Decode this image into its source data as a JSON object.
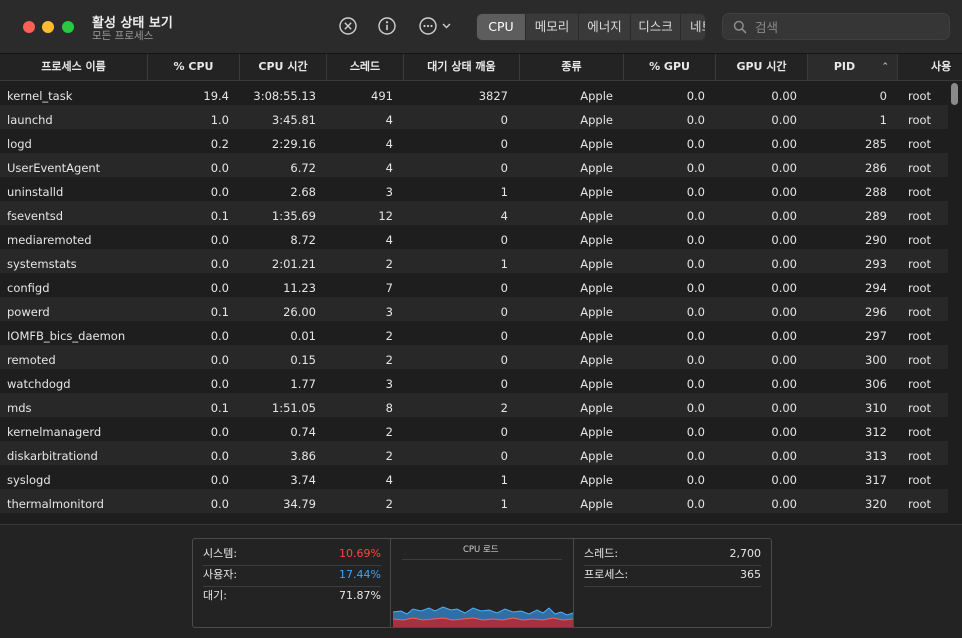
{
  "window": {
    "title": "활성 상태 보기",
    "subtitle": "모든 프로세스"
  },
  "toolbar": {
    "icons": [
      "stop-process-icon",
      "info-icon",
      "more-options-icon"
    ],
    "tabs": [
      "CPU",
      "메모리",
      "에너지",
      "디스크",
      "네트워크"
    ],
    "active_tab": "CPU",
    "search_placeholder": "검색"
  },
  "table": {
    "columns": [
      "프로세스 이름",
      "% CPU",
      "CPU 시간",
      "스레드",
      "대기 상태 깨움",
      "종류",
      "% GPU",
      "GPU 시간",
      "PID",
      "사용"
    ],
    "sorted_by": "PID",
    "sort_direction": "ascending",
    "rows": [
      {
        "name": "kernel_task",
        "cpu": "19.4",
        "time": "3:08:55.13",
        "threads": "491",
        "wakeups": "3827",
        "kind": "Apple",
        "gpu": "0.0",
        "gpu_time": "0.00",
        "pid": "0",
        "user": "root"
      },
      {
        "name": "launchd",
        "cpu": "1.0",
        "time": "3:45.81",
        "threads": "4",
        "wakeups": "0",
        "kind": "Apple",
        "gpu": "0.0",
        "gpu_time": "0.00",
        "pid": "1",
        "user": "root"
      },
      {
        "name": "logd",
        "cpu": "0.2",
        "time": "2:29.16",
        "threads": "4",
        "wakeups": "0",
        "kind": "Apple",
        "gpu": "0.0",
        "gpu_time": "0.00",
        "pid": "285",
        "user": "root"
      },
      {
        "name": "UserEventAgent",
        "cpu": "0.0",
        "time": "6.72",
        "threads": "4",
        "wakeups": "0",
        "kind": "Apple",
        "gpu": "0.0",
        "gpu_time": "0.00",
        "pid": "286",
        "user": "root"
      },
      {
        "name": "uninstalld",
        "cpu": "0.0",
        "time": "2.68",
        "threads": "3",
        "wakeups": "1",
        "kind": "Apple",
        "gpu": "0.0",
        "gpu_time": "0.00",
        "pid": "288",
        "user": "root"
      },
      {
        "name": "fseventsd",
        "cpu": "0.1",
        "time": "1:35.69",
        "threads": "12",
        "wakeups": "4",
        "kind": "Apple",
        "gpu": "0.0",
        "gpu_time": "0.00",
        "pid": "289",
        "user": "root"
      },
      {
        "name": "mediaremoted",
        "cpu": "0.0",
        "time": "8.72",
        "threads": "4",
        "wakeups": "0",
        "kind": "Apple",
        "gpu": "0.0",
        "gpu_time": "0.00",
        "pid": "290",
        "user": "root"
      },
      {
        "name": "systemstats",
        "cpu": "0.0",
        "time": "2:01.21",
        "threads": "2",
        "wakeups": "1",
        "kind": "Apple",
        "gpu": "0.0",
        "gpu_time": "0.00",
        "pid": "293",
        "user": "root"
      },
      {
        "name": "configd",
        "cpu": "0.0",
        "time": "11.23",
        "threads": "7",
        "wakeups": "0",
        "kind": "Apple",
        "gpu": "0.0",
        "gpu_time": "0.00",
        "pid": "294",
        "user": "root"
      },
      {
        "name": "powerd",
        "cpu": "0.1",
        "time": "26.00",
        "threads": "3",
        "wakeups": "0",
        "kind": "Apple",
        "gpu": "0.0",
        "gpu_time": "0.00",
        "pid": "296",
        "user": "root"
      },
      {
        "name": "IOMFB_bics_daemon",
        "cpu": "0.0",
        "time": "0.01",
        "threads": "2",
        "wakeups": "0",
        "kind": "Apple",
        "gpu": "0.0",
        "gpu_time": "0.00",
        "pid": "297",
        "user": "root"
      },
      {
        "name": "remoted",
        "cpu": "0.0",
        "time": "0.15",
        "threads": "2",
        "wakeups": "0",
        "kind": "Apple",
        "gpu": "0.0",
        "gpu_time": "0.00",
        "pid": "300",
        "user": "root"
      },
      {
        "name": "watchdogd",
        "cpu": "0.0",
        "time": "1.77",
        "threads": "3",
        "wakeups": "0",
        "kind": "Apple",
        "gpu": "0.0",
        "gpu_time": "0.00",
        "pid": "306",
        "user": "root"
      },
      {
        "name": "mds",
        "cpu": "0.1",
        "time": "1:51.05",
        "threads": "8",
        "wakeups": "2",
        "kind": "Apple",
        "gpu": "0.0",
        "gpu_time": "0.00",
        "pid": "310",
        "user": "root"
      },
      {
        "name": "kernelmanagerd",
        "cpu": "0.0",
        "time": "0.74",
        "threads": "2",
        "wakeups": "0",
        "kind": "Apple",
        "gpu": "0.0",
        "gpu_time": "0.00",
        "pid": "312",
        "user": "root"
      },
      {
        "name": "diskarbitrationd",
        "cpu": "0.0",
        "time": "3.86",
        "threads": "2",
        "wakeups": "0",
        "kind": "Apple",
        "gpu": "0.0",
        "gpu_time": "0.00",
        "pid": "313",
        "user": "root"
      },
      {
        "name": "syslogd",
        "cpu": "0.0",
        "time": "3.74",
        "threads": "4",
        "wakeups": "1",
        "kind": "Apple",
        "gpu": "0.0",
        "gpu_time": "0.00",
        "pid": "317",
        "user": "root"
      },
      {
        "name": "thermalmonitord",
        "cpu": "0.0",
        "time": "34.79",
        "threads": "2",
        "wakeups": "1",
        "kind": "Apple",
        "gpu": "0.0",
        "gpu_time": "0.00",
        "pid": "320",
        "user": "root"
      }
    ]
  },
  "footer": {
    "system_label": "시스템:",
    "system_value": "10.69%",
    "user_label": "사용자:",
    "user_value": "17.44%",
    "idle_label": "대기:",
    "idle_value": "71.87%",
    "graph_title": "CPU 로드",
    "threads_label": "스레드:",
    "threads_value": "2,700",
    "processes_label": "프로세스:",
    "processes_value": "365",
    "colors": {
      "system": "#ff453a",
      "user": "#3fa3f5"
    }
  }
}
